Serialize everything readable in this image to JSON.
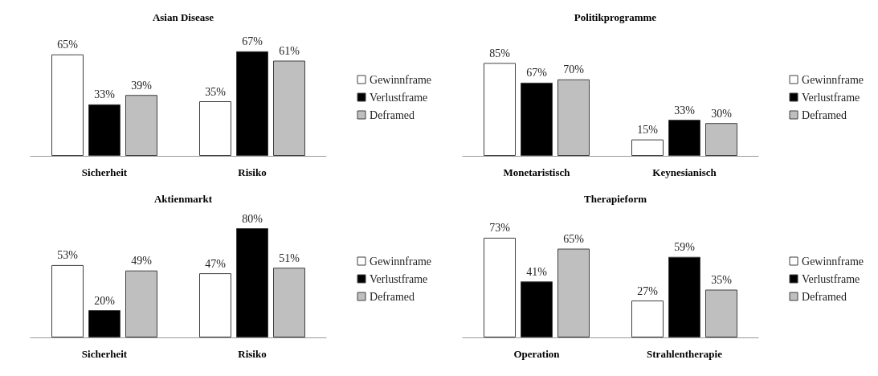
{
  "chart_data": [
    {
      "type": "bar",
      "title": "Asian Disease",
      "categories": [
        "Sicherheit",
        "Risiko"
      ],
      "legend": "right",
      "series": [
        {
          "name": "Gewinnframe",
          "color": "#ffffff",
          "values": [
            65,
            35
          ],
          "value_labels": [
            "65%",
            "35%"
          ]
        },
        {
          "name": "Verlustframe",
          "color": "#000000",
          "values": [
            33,
            67
          ],
          "value_labels": [
            "33%",
            "67%"
          ]
        },
        {
          "name": "Deframed",
          "color": "#bfbfbf",
          "values": [
            39,
            61
          ],
          "value_labels": [
            "39%",
            "61%"
          ]
        }
      ]
    },
    {
      "type": "bar",
      "title": "Politikprogramme",
      "categories": [
        "Monetaristisch",
        "Keynesianisch"
      ],
      "legend": "right",
      "series": [
        {
          "name": "Gewinnframe",
          "color": "#ffffff",
          "values": [
            85,
            15
          ],
          "value_labels": [
            "85%",
            "15%"
          ]
        },
        {
          "name": "Verlustframe",
          "color": "#000000",
          "values": [
            67,
            33
          ],
          "value_labels": [
            "67%",
            "33%"
          ]
        },
        {
          "name": "Deframed",
          "color": "#bfbfbf",
          "values": [
            70,
            30
          ],
          "value_labels": [
            "70%",
            "30%"
          ]
        }
      ]
    },
    {
      "type": "bar",
      "title": "Aktienmarkt",
      "categories": [
        "Sicherheit",
        "Risiko"
      ],
      "legend": "right",
      "series": [
        {
          "name": "Gewinnframe",
          "color": "#ffffff",
          "values": [
            53,
            47
          ],
          "value_labels": [
            "53%",
            "47%"
          ]
        },
        {
          "name": "Verlustframe",
          "color": "#000000",
          "values": [
            20,
            80
          ],
          "value_labels": [
            "20%",
            "80%"
          ]
        },
        {
          "name": "Deframed",
          "color": "#bfbfbf",
          "values": [
            49,
            51
          ],
          "value_labels": [
            "49%",
            "51%"
          ]
        }
      ]
    },
    {
      "type": "bar",
      "title": "Therapieform",
      "categories": [
        "Operation",
        "Strahlentherapie"
      ],
      "legend": "right",
      "series": [
        {
          "name": "Gewinnframe",
          "color": "#ffffff",
          "values": [
            73,
            27
          ],
          "value_labels": [
            "73%",
            "27%"
          ]
        },
        {
          "name": "Verlustframe",
          "color": "#000000",
          "values": [
            41,
            59
          ],
          "value_labels": [
            "41%",
            "59%"
          ]
        },
        {
          "name": "Deframed",
          "color": "#bfbfbf",
          "values": [
            65,
            35
          ],
          "value_labels": [
            "65%",
            "35%"
          ]
        }
      ]
    }
  ]
}
